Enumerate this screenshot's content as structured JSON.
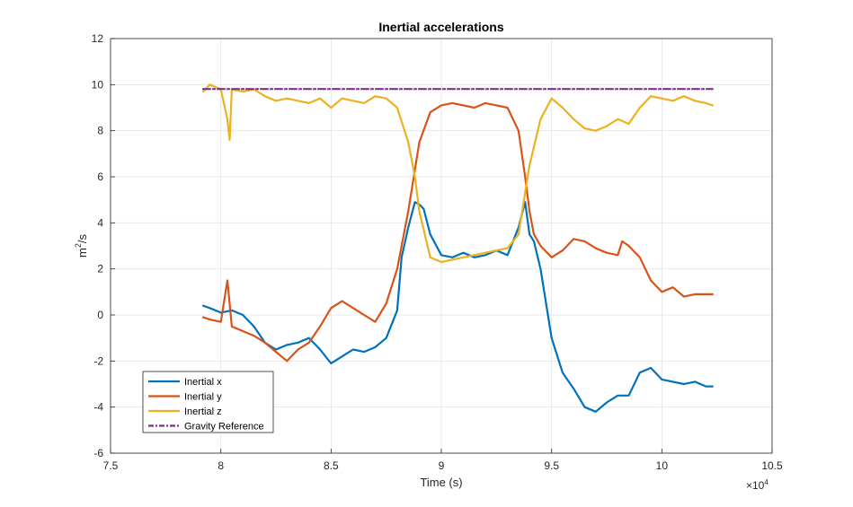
{
  "chart_data": {
    "type": "line",
    "title": "Inertial accelerations",
    "xlabel": "Time (s)",
    "ylabel_base": "m",
    "ylabel_sup": "2",
    "ylabel_tail": "/s",
    "x_exponent_label": "×10",
    "x_exponent_power": "4",
    "xlim": [
      7.5,
      10.5
    ],
    "ylim": [
      -6,
      12
    ],
    "xticks": [
      7.5,
      8,
      8.5,
      9,
      9.5,
      10,
      10.5
    ],
    "xtick_labels": [
      "7.5",
      "8",
      "8.5",
      "9",
      "9.5",
      "10",
      "10.5"
    ],
    "yticks": [
      -6,
      -4,
      -2,
      0,
      2,
      4,
      6,
      8,
      10,
      12
    ],
    "ytick_labels": [
      "-6",
      "-4",
      "-2",
      "0",
      "2",
      "4",
      "6",
      "8",
      "10",
      "12"
    ],
    "grid": true,
    "legend_position": "bottom-left",
    "series": [
      {
        "name": "Inertial x",
        "color": "#0072BD",
        "style": "solid",
        "x": [
          7.92,
          7.95,
          8.0,
          8.05,
          8.1,
          8.15,
          8.2,
          8.25,
          8.3,
          8.35,
          8.4,
          8.45,
          8.5,
          8.55,
          8.6,
          8.65,
          8.7,
          8.75,
          8.8,
          8.82,
          8.85,
          8.88,
          8.9,
          8.92,
          8.95,
          9.0,
          9.05,
          9.1,
          9.15,
          9.2,
          9.25,
          9.3,
          9.35,
          9.38,
          9.4,
          9.42,
          9.45,
          9.5,
          9.55,
          9.6,
          9.65,
          9.7,
          9.75,
          9.8,
          9.85,
          9.9,
          9.95,
          10.0,
          10.05,
          10.1,
          10.15,
          10.2,
          10.23
        ],
        "y": [
          0.4,
          0.3,
          0.1,
          0.2,
          0.0,
          -0.5,
          -1.2,
          -1.5,
          -1.3,
          -1.2,
          -1.0,
          -1.5,
          -2.1,
          -1.8,
          -1.5,
          -1.6,
          -1.4,
          -1.0,
          0.2,
          2.5,
          3.8,
          4.9,
          4.8,
          4.6,
          3.5,
          2.6,
          2.5,
          2.7,
          2.5,
          2.6,
          2.8,
          2.6,
          3.8,
          4.9,
          3.5,
          3.2,
          2.0,
          -1.0,
          -2.5,
          -3.2,
          -4.0,
          -4.2,
          -3.8,
          -3.5,
          -3.5,
          -2.5,
          -2.3,
          -2.8,
          -2.9,
          -3.0,
          -2.9,
          -3.1,
          -3.1
        ]
      },
      {
        "name": "Inertial y",
        "color": "#D95319",
        "style": "solid",
        "x": [
          7.92,
          7.95,
          8.0,
          8.03,
          8.05,
          8.1,
          8.15,
          8.2,
          8.25,
          8.3,
          8.35,
          8.4,
          8.45,
          8.5,
          8.55,
          8.6,
          8.65,
          8.7,
          8.75,
          8.8,
          8.85,
          8.9,
          8.95,
          9.0,
          9.05,
          9.1,
          9.15,
          9.2,
          9.25,
          9.3,
          9.35,
          9.38,
          9.4,
          9.42,
          9.45,
          9.5,
          9.55,
          9.6,
          9.65,
          9.7,
          9.75,
          9.8,
          9.82,
          9.85,
          9.9,
          9.95,
          10.0,
          10.05,
          10.1,
          10.15,
          10.2,
          10.23
        ],
        "y": [
          -0.1,
          -0.2,
          -0.3,
          1.5,
          -0.5,
          -0.7,
          -0.9,
          -1.2,
          -1.6,
          -2.0,
          -1.5,
          -1.2,
          -0.5,
          0.3,
          0.6,
          0.3,
          0.0,
          -0.3,
          0.5,
          2.0,
          4.5,
          7.5,
          8.8,
          9.1,
          9.2,
          9.1,
          9.0,
          9.2,
          9.1,
          9.0,
          8.0,
          6.0,
          4.5,
          3.5,
          3.0,
          2.5,
          2.8,
          3.3,
          3.2,
          2.9,
          2.7,
          2.6,
          3.2,
          3.0,
          2.5,
          1.5,
          1.0,
          1.2,
          0.8,
          0.9,
          0.9,
          0.9
        ]
      },
      {
        "name": "Inertial z",
        "color": "#EDB120",
        "style": "solid",
        "x": [
          7.92,
          7.95,
          8.0,
          8.03,
          8.04,
          8.05,
          8.1,
          8.15,
          8.2,
          8.25,
          8.3,
          8.35,
          8.4,
          8.45,
          8.5,
          8.55,
          8.6,
          8.65,
          8.7,
          8.75,
          8.8,
          8.85,
          8.88,
          8.9,
          8.95,
          9.0,
          9.05,
          9.1,
          9.15,
          9.2,
          9.25,
          9.3,
          9.35,
          9.4,
          9.45,
          9.5,
          9.55,
          9.6,
          9.65,
          9.7,
          9.75,
          9.8,
          9.85,
          9.9,
          9.95,
          10.0,
          10.05,
          10.1,
          10.15,
          10.2,
          10.23
        ],
        "y": [
          9.7,
          10.0,
          9.8,
          8.5,
          7.6,
          9.8,
          9.7,
          9.8,
          9.5,
          9.3,
          9.4,
          9.3,
          9.2,
          9.4,
          9.0,
          9.4,
          9.3,
          9.2,
          9.5,
          9.4,
          9.0,
          7.5,
          6.0,
          4.5,
          2.5,
          2.3,
          2.4,
          2.5,
          2.6,
          2.7,
          2.8,
          2.9,
          3.5,
          6.5,
          8.5,
          9.4,
          9.0,
          8.5,
          8.1,
          8.0,
          8.2,
          8.5,
          8.3,
          9.0,
          9.5,
          9.4,
          9.3,
          9.5,
          9.3,
          9.2,
          9.1
        ]
      },
      {
        "name": "Gravity Reference",
        "color": "#7E2F8E",
        "style": "dashdot",
        "x": [
          7.92,
          10.23
        ],
        "y": [
          9.81,
          9.81
        ]
      }
    ]
  }
}
